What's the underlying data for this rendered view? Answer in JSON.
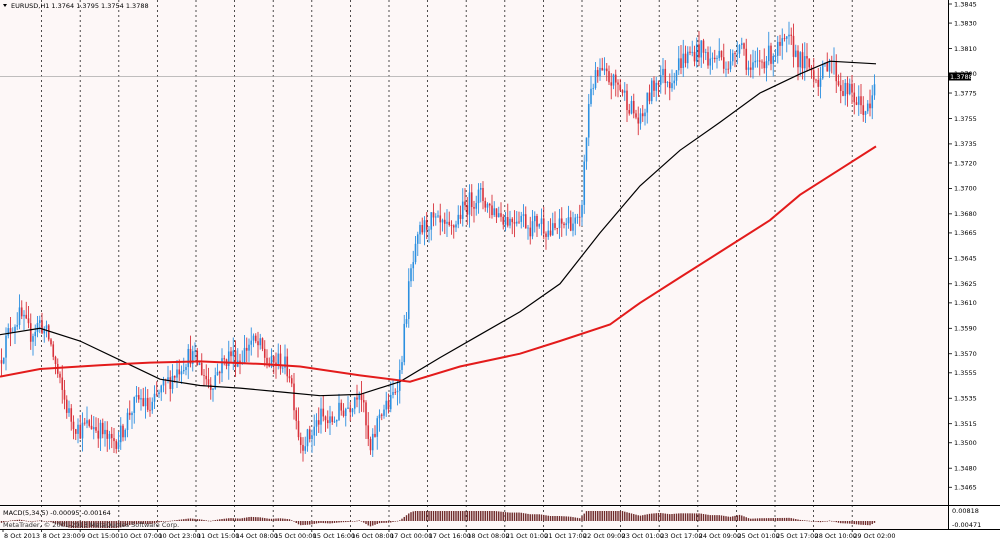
{
  "window": {
    "symbol_info": "EURUSD,H1  1.3764 1.3795 1.3754 1.3788",
    "indicator_info": "MACD(5,34,5) -0.00095 -0.00164",
    "copyright": "MetaTrader, © 2001-2013 MetaQuotes Software Corp."
  },
  "colors": {
    "background": "#fdf7f7",
    "grid": "#222222",
    "bull": "#2b8fe0",
    "bear": "#d8313a",
    "ma_fast": "#000000",
    "ma_slow": "#e31b1b",
    "price_line": "#aaaaaa",
    "macd_hist": "#6e2a2a"
  },
  "chart_data": {
    "type": "line",
    "instrument": "EURUSD",
    "timeframe": "H1",
    "ylim": [
      1.3455,
      1.3845
    ],
    "y_ticks": [
      "1.3845",
      "1.3830",
      "1.3810",
      "1.3790",
      "1.3775",
      "1.3755",
      "1.3735",
      "1.3720",
      "1.3700",
      "1.3680",
      "1.3665",
      "1.3645",
      "1.3625",
      "1.3610",
      "1.3590",
      "1.3570",
      "1.3555",
      "1.3535",
      "1.3515",
      "1.3500",
      "1.3480",
      "1.3465"
    ],
    "current_price": "1.3788",
    "x_ticks": [
      "8 Oct 2013",
      "8 Oct 23:00",
      "9 Oct 15:00",
      "10 Oct 07:00",
      "10 Oct 23:00",
      "11 Oct 15:00",
      "14 Oct 08:00",
      "15 Oct 00:00",
      "15 Oct 16:00",
      "16 Oct 08:00",
      "17 Oct 00:00",
      "17 Oct 16:00",
      "18 Oct 08:00",
      "21 Oct 01:00",
      "21 Oct 17:00",
      "22 Oct 09:00",
      "23 Oct 01:00",
      "23 Oct 17:00",
      "24 Oct 09:00",
      "25 Oct 01:00",
      "25 Oct 17:00",
      "28 Oct 10:00",
      "29 Oct 02:00"
    ],
    "price_path": [
      [
        0,
        1.3565
      ],
      [
        10,
        1.359
      ],
      [
        20,
        1.36
      ],
      [
        30,
        1.3585
      ],
      [
        40,
        1.3595
      ],
      [
        50,
        1.358
      ],
      [
        60,
        1.3545
      ],
      [
        70,
        1.352
      ],
      [
        80,
        1.351
      ],
      [
        90,
        1.3515
      ],
      [
        100,
        1.351
      ],
      [
        110,
        1.35
      ],
      [
        120,
        1.3505
      ],
      [
        130,
        1.3525
      ],
      [
        140,
        1.3535
      ],
      [
        150,
        1.3525
      ],
      [
        160,
        1.354
      ],
      [
        170,
        1.355
      ],
      [
        180,
        1.356
      ],
      [
        190,
        1.357
      ],
      [
        200,
        1.356
      ],
      [
        210,
        1.3545
      ],
      [
        220,
        1.356
      ],
      [
        230,
        1.357
      ],
      [
        240,
        1.3565
      ],
      [
        250,
        1.358
      ],
      [
        260,
        1.3575
      ],
      [
        270,
        1.356
      ],
      [
        280,
        1.3565
      ],
      [
        290,
        1.3555
      ],
      [
        300,
        1.35
      ],
      [
        310,
        1.3505
      ],
      [
        320,
        1.352
      ],
      [
        330,
        1.3515
      ],
      [
        340,
        1.3525
      ],
      [
        350,
        1.353
      ],
      [
        360,
        1.3545
      ],
      [
        370,
        1.349
      ],
      [
        380,
        1.3525
      ],
      [
        390,
        1.353
      ],
      [
        400,
        1.3555
      ],
      [
        410,
        1.363
      ],
      [
        420,
        1.3665
      ],
      [
        430,
        1.3675
      ],
      [
        440,
        1.367
      ],
      [
        450,
        1.3665
      ],
      [
        460,
        1.368
      ],
      [
        470,
        1.369
      ],
      [
        480,
        1.3695
      ],
      [
        490,
        1.3685
      ],
      [
        500,
        1.368
      ],
      [
        510,
        1.3675
      ],
      [
        520,
        1.368
      ],
      [
        530,
        1.367
      ],
      [
        540,
        1.3675
      ],
      [
        550,
        1.3665
      ],
      [
        560,
        1.367
      ],
      [
        570,
        1.3675
      ],
      [
        580,
        1.367
      ],
      [
        590,
        1.378
      ],
      [
        600,
        1.379
      ],
      [
        610,
        1.3785
      ],
      [
        620,
        1.378
      ],
      [
        630,
        1.3765
      ],
      [
        640,
        1.375
      ],
      [
        650,
        1.3775
      ],
      [
        660,
        1.379
      ],
      [
        670,
        1.3785
      ],
      [
        680,
        1.38
      ],
      [
        690,
        1.3805
      ],
      [
        700,
        1.381
      ],
      [
        710,
        1.38
      ],
      [
        720,
        1.3805
      ],
      [
        730,
        1.3795
      ],
      [
        740,
        1.382
      ],
      [
        750,
        1.379
      ],
      [
        760,
        1.38
      ],
      [
        770,
        1.3805
      ],
      [
        780,
        1.381
      ],
      [
        790,
        1.3815
      ],
      [
        800,
        1.38
      ],
      [
        810,
        1.3795
      ],
      [
        820,
        1.3785
      ],
      [
        830,
        1.3805
      ],
      [
        840,
        1.378
      ],
      [
        850,
        1.3775
      ],
      [
        860,
        1.3765
      ],
      [
        870,
        1.376
      ],
      [
        876,
        1.3788
      ]
    ],
    "series": [
      {
        "values": [
          [
            0,
            1.3585
          ],
          [
            40,
            1.359
          ],
          [
            80,
            1.358
          ],
          [
            120,
            1.3565
          ],
          [
            160,
            1.355
          ],
          [
            200,
            1.3545
          ],
          [
            240,
            1.3543
          ],
          [
            280,
            1.354
          ],
          [
            320,
            1.3537
          ],
          [
            360,
            1.3538
          ],
          [
            400,
            1.3548
          ],
          [
            440,
            1.3567
          ],
          [
            480,
            1.3585
          ],
          [
            520,
            1.3603
          ],
          [
            560,
            1.3625
          ],
          [
            600,
            1.3665
          ],
          [
            640,
            1.3702
          ],
          [
            680,
            1.373
          ],
          [
            720,
            1.3752
          ],
          [
            760,
            1.3775
          ],
          [
            800,
            1.379
          ],
          [
            830,
            1.38
          ],
          [
            876,
            1.3798
          ]
        ]
      },
      {
        "values": [
          [
            0,
            1.3552
          ],
          [
            40,
            1.3558
          ],
          [
            100,
            1.3561
          ],
          [
            150,
            1.3563
          ],
          [
            200,
            1.3564
          ],
          [
            260,
            1.3562
          ],
          [
            300,
            1.356
          ],
          [
            360,
            1.3553
          ],
          [
            410,
            1.3548
          ],
          [
            460,
            1.356
          ],
          [
            520,
            1.357
          ],
          [
            560,
            1.358
          ],
          [
            610,
            1.3593
          ],
          [
            640,
            1.361
          ],
          [
            680,
            1.363
          ],
          [
            720,
            1.365
          ],
          [
            770,
            1.3675
          ],
          [
            800,
            1.3695
          ],
          [
            840,
            1.3715
          ],
          [
            876,
            1.3733
          ]
        ]
      }
    ]
  }
}
